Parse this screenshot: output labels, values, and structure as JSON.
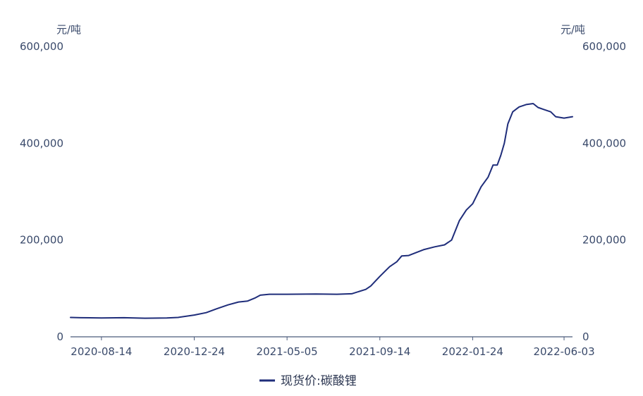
{
  "chart_data": {
    "type": "line",
    "y_unit_left": "元/吨",
    "y_unit_right": "元/吨",
    "ylim": [
      0,
      600000
    ],
    "y_ticks": [
      {
        "value": 0,
        "label": "0"
      },
      {
        "value": 200000,
        "label": "200,000"
      },
      {
        "value": 400000,
        "label": "400,000"
      },
      {
        "value": 600000,
        "label": "600,000"
      }
    ],
    "x_range": [
      "2020-07-01",
      "2022-06-15"
    ],
    "x_ticks": [
      "2020-08-14",
      "2020-12-24",
      "2021-05-05",
      "2021-09-14",
      "2022-01-24",
      "2022-06-03"
    ],
    "grid": false,
    "legend_position": "bottom-center",
    "colors": {
      "line": "#1f2d7a",
      "axis": "#4a5a7a",
      "text": "#3a4a6b"
    },
    "series": [
      {
        "name": "现货价:碳酸锂",
        "points": [
          [
            "2020-07-01",
            40000
          ],
          [
            "2020-07-15",
            39500
          ],
          [
            "2020-08-14",
            39000
          ],
          [
            "2020-09-15",
            39500
          ],
          [
            "2020-10-15",
            38500
          ],
          [
            "2020-11-15",
            39000
          ],
          [
            "2020-12-01",
            40000
          ],
          [
            "2020-12-24",
            45000
          ],
          [
            "2021-01-10",
            50000
          ],
          [
            "2021-01-25",
            58000
          ],
          [
            "2021-02-10",
            66000
          ],
          [
            "2021-02-25",
            72000
          ],
          [
            "2021-03-10",
            74000
          ],
          [
            "2021-03-20",
            80000
          ],
          [
            "2021-03-28",
            86000
          ],
          [
            "2021-04-10",
            88000
          ],
          [
            "2021-05-05",
            88000
          ],
          [
            "2021-06-15",
            88500
          ],
          [
            "2021-07-15",
            88000
          ],
          [
            "2021-08-05",
            89000
          ],
          [
            "2021-08-25",
            98000
          ],
          [
            "2021-09-01",
            105000
          ],
          [
            "2021-09-14",
            125000
          ],
          [
            "2021-09-28",
            145000
          ],
          [
            "2021-10-08",
            155000
          ],
          [
            "2021-10-15",
            167000
          ],
          [
            "2021-10-25",
            168000
          ],
          [
            "2021-11-15",
            180000
          ],
          [
            "2021-12-01",
            186000
          ],
          [
            "2021-12-15",
            190000
          ],
          [
            "2021-12-25",
            200000
          ],
          [
            "2022-01-05",
            240000
          ],
          [
            "2022-01-15",
            262000
          ],
          [
            "2022-01-24",
            275000
          ],
          [
            "2022-02-05",
            310000
          ],
          [
            "2022-02-15",
            330000
          ],
          [
            "2022-02-22",
            355000
          ],
          [
            "2022-02-28",
            355000
          ],
          [
            "2022-03-05",
            375000
          ],
          [
            "2022-03-10",
            400000
          ],
          [
            "2022-03-15",
            440000
          ],
          [
            "2022-03-22",
            465000
          ],
          [
            "2022-03-31",
            475000
          ],
          [
            "2022-04-10",
            480000
          ],
          [
            "2022-04-20",
            482000
          ],
          [
            "2022-04-27",
            474000
          ],
          [
            "2022-05-05",
            470000
          ],
          [
            "2022-05-15",
            465000
          ],
          [
            "2022-05-22",
            455000
          ],
          [
            "2022-06-03",
            452000
          ],
          [
            "2022-06-15",
            455000
          ]
        ]
      }
    ]
  }
}
